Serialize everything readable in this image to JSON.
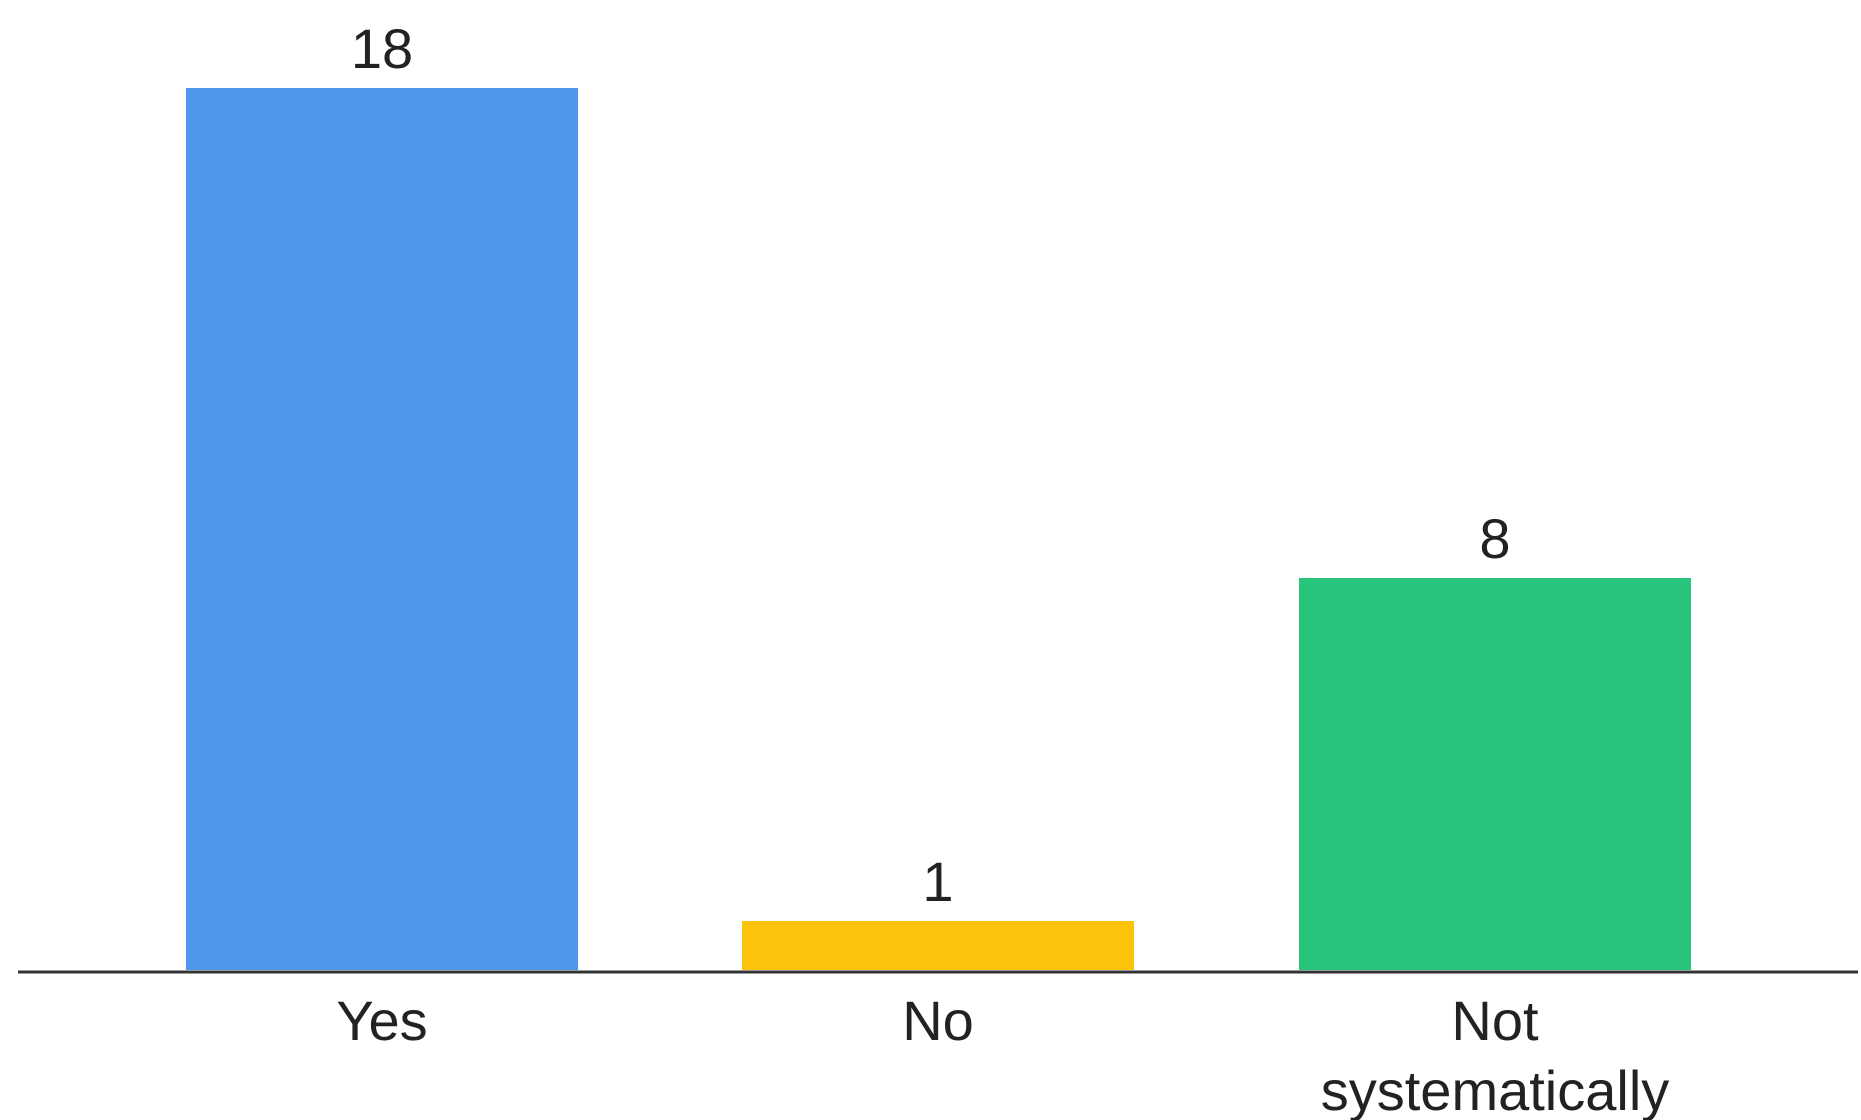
{
  "chart_data": {
    "type": "bar",
    "categories": [
      [
        "Yes"
      ],
      [
        "No"
      ],
      [
        "Not",
        "systematically"
      ]
    ],
    "values": [
      18,
      1,
      8
    ],
    "value_labels": [
      "18",
      "1",
      "8"
    ],
    "colors": [
      "#4f97ea",
      "#fbc30a",
      "#28c47c"
    ],
    "axis_color": "#333333",
    "title": "",
    "xlabel": "",
    "ylabel": "",
    "ylim": [
      0,
      18
    ],
    "grid": false,
    "legend": "none"
  }
}
